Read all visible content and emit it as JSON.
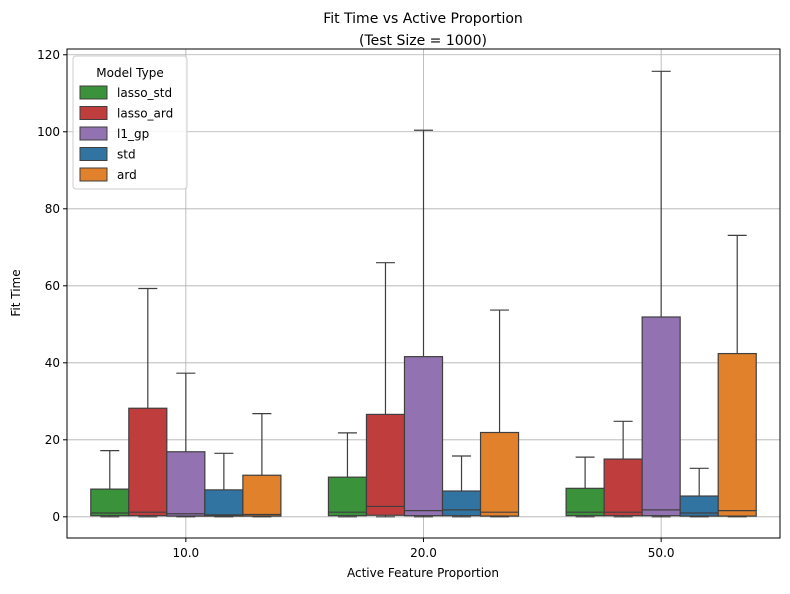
{
  "chart_data": {
    "type": "box",
    "title_line1": "Fit Time vs Active Proportion",
    "title_line2": "(Test Size = 1000)",
    "xlabel": "Active Feature Proportion",
    "ylabel": "Fit Time",
    "categories": [
      "10.0",
      "20.0",
      "50.0"
    ],
    "ylim": [
      -5.5,
      121.5
    ],
    "yticks": [
      0,
      20,
      40,
      60,
      80,
      100,
      120
    ],
    "grid": true,
    "legend": {
      "title": "Model Type",
      "placement": "top-left"
    },
    "series": [
      {
        "name": "lasso_std",
        "color": "#3a923a",
        "boxes": [
          {
            "min": 0,
            "q1": 0.3,
            "median": 1.0,
            "q3": 7.2,
            "max": 17.2
          },
          {
            "min": 0,
            "q1": 0.3,
            "median": 1.2,
            "q3": 10.3,
            "max": 21.8
          },
          {
            "min": 0,
            "q1": 0.3,
            "median": 1.2,
            "q3": 7.4,
            "max": 15.5
          }
        ]
      },
      {
        "name": "lasso_ard",
        "color": "#c03d3e",
        "boxes": [
          {
            "min": 0,
            "q1": 0.3,
            "median": 1.2,
            "q3": 28.2,
            "max": 59.3
          },
          {
            "min": 0,
            "q1": 0.4,
            "median": 2.7,
            "q3": 26.6,
            "max": 66.0
          },
          {
            "min": 0,
            "q1": 0.3,
            "median": 1.2,
            "q3": 15.0,
            "max": 24.8
          }
        ]
      },
      {
        "name": "l1_gp",
        "color": "#9372b2",
        "boxes": [
          {
            "min": 0,
            "q1": 0.2,
            "median": 0.8,
            "q3": 16.9,
            "max": 37.3
          },
          {
            "min": 0,
            "q1": 0.3,
            "median": 1.6,
            "q3": 41.6,
            "max": 100.4
          },
          {
            "min": 0,
            "q1": 0.3,
            "median": 1.8,
            "q3": 51.9,
            "max": 115.7
          }
        ]
      },
      {
        "name": "std",
        "color": "#3274a1",
        "boxes": [
          {
            "min": 0,
            "q1": 0.2,
            "median": 0.5,
            "q3": 7.0,
            "max": 16.5
          },
          {
            "min": 0,
            "q1": 0.3,
            "median": 1.8,
            "q3": 6.7,
            "max": 15.8
          },
          {
            "min": 0,
            "q1": 0.2,
            "median": 1.0,
            "q3": 5.4,
            "max": 12.6
          }
        ]
      },
      {
        "name": "ard",
        "color": "#e1812c",
        "boxes": [
          {
            "min": 0,
            "q1": 0.2,
            "median": 0.6,
            "q3": 10.8,
            "max": 26.8
          },
          {
            "min": 0,
            "q1": 0.2,
            "median": 1.2,
            "q3": 21.9,
            "max": 53.7
          },
          {
            "min": 0,
            "q1": 0.2,
            "median": 1.6,
            "q3": 42.4,
            "max": 73.1
          }
        ]
      }
    ]
  }
}
